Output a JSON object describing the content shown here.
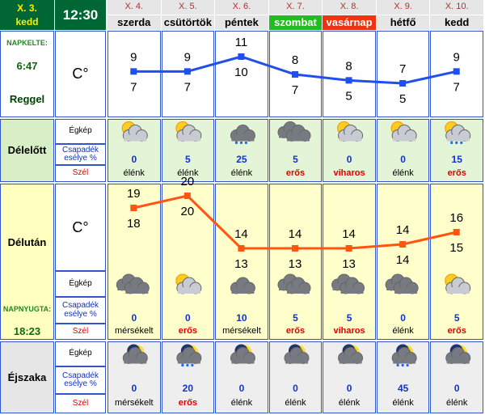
{
  "today": {
    "date": "X. 3.",
    "weekday": "kedd",
    "time": "12:30"
  },
  "sunrise": {
    "label": "NAPKELTE:",
    "time": "6:47"
  },
  "sunset": {
    "label": "NAPNYUGTA:",
    "time": "18:23"
  },
  "unit": "C°",
  "row_labels": {
    "morning": "Reggel",
    "forenoon": "Délelőtt",
    "afternoon": "Délután",
    "night": "Éjszaka",
    "sky": "Égkép",
    "precip": "Csapadék esélye %",
    "wind": "Szél"
  },
  "days": [
    {
      "date": "X. 4.",
      "name": "szerda",
      "color": "#e6e6e6",
      "text_color": "#000000"
    },
    {
      "date": "X. 5.",
      "name": "csütörtök",
      "color": "#e6e6e6",
      "text_color": "#000000"
    },
    {
      "date": "X. 6.",
      "name": "péntek",
      "color": "#e6e6e6",
      "text_color": "#000000"
    },
    {
      "date": "X. 7.",
      "name": "szombat",
      "color": "#22bb22",
      "text_color": "#ffffff"
    },
    {
      "date": "X. 8.",
      "name": "vasárnap",
      "color": "#ee3311",
      "text_color": "#ffffff"
    },
    {
      "date": "X. 9.",
      "name": "hétfő",
      "color": "#e6e6e6",
      "text_color": "#000000"
    },
    {
      "date": "X. 10.",
      "name": "kedd",
      "color": "#e6e6e6",
      "text_color": "#000000"
    }
  ],
  "morning": {
    "high": [
      9,
      9,
      11,
      8,
      8,
      7,
      9
    ],
    "low": [
      7,
      7,
      10,
      7,
      5,
      5,
      7
    ],
    "line_color": "#1f4ff0"
  },
  "forenoon": {
    "precip": [
      0,
      5,
      25,
      5,
      0,
      0,
      15
    ],
    "wind": [
      {
        "text": "élénk",
        "color": "#000000"
      },
      {
        "text": "élénk",
        "color": "#000000"
      },
      {
        "text": "élénk",
        "color": "#000000"
      },
      {
        "text": "erős",
        "color": "#e00000"
      },
      {
        "text": "viharos",
        "color": "#e00000"
      },
      {
        "text": "élénk",
        "color": "#000000"
      },
      {
        "text": "erős",
        "color": "#e00000"
      }
    ]
  },
  "afternoon": {
    "high": [
      19,
      20,
      14,
      14,
      14,
      14,
      16
    ],
    "low": [
      18,
      20,
      13,
      13,
      13,
      14,
      15
    ],
    "line_color": "#ff5511",
    "precip": [
      0,
      0,
      10,
      5,
      5,
      0,
      5
    ],
    "wind": [
      {
        "text": "mérsékelt",
        "color": "#000000"
      },
      {
        "text": "erős",
        "color": "#e00000"
      },
      {
        "text": "mérsékelt",
        "color": "#000000"
      },
      {
        "text": "erős",
        "color": "#e00000"
      },
      {
        "text": "viharos",
        "color": "#e00000"
      },
      {
        "text": "élénk",
        "color": "#000000"
      },
      {
        "text": "erős",
        "color": "#e00000"
      }
    ]
  },
  "night": {
    "precip": [
      0,
      20,
      0,
      0,
      0,
      45,
      0
    ],
    "wind": [
      {
        "text": "mérsékelt",
        "color": "#000000"
      },
      {
        "text": "erős",
        "color": "#e00000"
      },
      {
        "text": "élénk",
        "color": "#000000"
      },
      {
        "text": "élénk",
        "color": "#000000"
      },
      {
        "text": "élénk",
        "color": "#000000"
      },
      {
        "text": "élénk",
        "color": "#000000"
      },
      {
        "text": "élénk",
        "color": "#000000"
      }
    ]
  }
}
